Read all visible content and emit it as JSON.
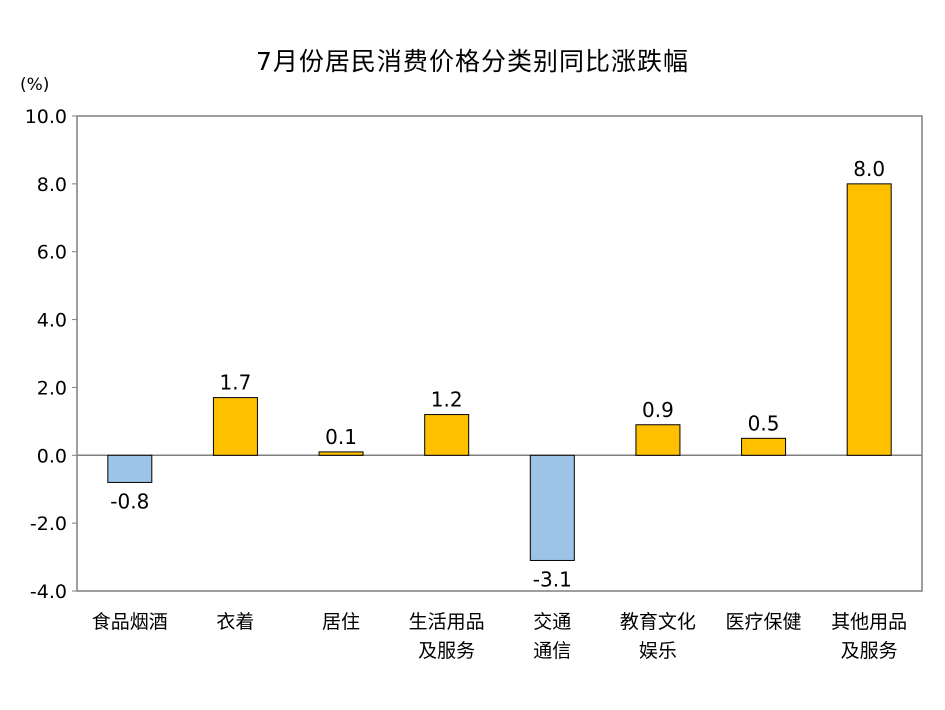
{
  "chart_data": {
    "type": "bar",
    "title": "7月份居民消费价格分类别同比涨跌幅",
    "unit_label": "(%)",
    "ylim": [
      -4.0,
      10.0
    ],
    "yticks": [
      "10.0",
      "8.0",
      "6.0",
      "4.0",
      "2.0",
      "0.0",
      "-2.0",
      "-4.0"
    ],
    "ytick_values": [
      10,
      8,
      6,
      4,
      2,
      0,
      -2,
      -4
    ],
    "categories": [
      [
        "食品烟酒"
      ],
      [
        "衣着"
      ],
      [
        "居住"
      ],
      [
        "生活用品",
        "及服务"
      ],
      [
        "交通",
        "通信"
      ],
      [
        "教育文化",
        "娱乐"
      ],
      [
        "医疗保健"
      ],
      [
        "其他用品",
        "及服务"
      ]
    ],
    "values": [
      -0.8,
      1.7,
      0.1,
      1.2,
      -3.1,
      0.9,
      0.5,
      8.0
    ],
    "value_labels": [
      "-0.8",
      "1.7",
      "0.1",
      "1.2",
      "-3.1",
      "0.9",
      "0.5",
      "8.0"
    ],
    "colors": {
      "positive": "#FFC000",
      "negative": "#9DC3E6",
      "outline": "#000000"
    },
    "grid": false
  }
}
